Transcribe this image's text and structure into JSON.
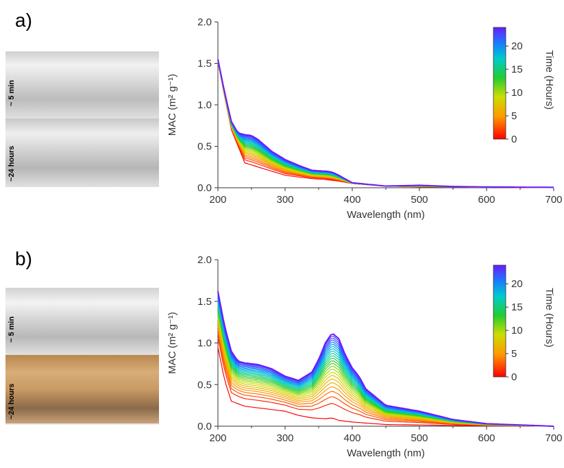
{
  "panels": [
    {
      "letter": "a)",
      "photo_labels": [
        "~ 5 min",
        "~24 hours"
      ]
    },
    {
      "letter": "b)",
      "photo_labels": [
        "~ 5 min",
        "~24 hours"
      ]
    }
  ],
  "colors": {
    "vial_clear": "#dcdcdc",
    "vial_amber": "#c79b6a",
    "series_start": "#ff0000",
    "series_end": "#6a1bff"
  },
  "chart_data": [
    {
      "type": "line",
      "xlabel": "Wavelength (nm)",
      "ylabel": "MAC (m² g⁻¹)",
      "xlim": [
        200,
        700
      ],
      "ylim": [
        0,
        2.0
      ],
      "xticks": [
        200,
        300,
        400,
        500,
        600,
        700
      ],
      "yticks": [
        0.0,
        0.5,
        1.0,
        1.5,
        2.0
      ],
      "colorbar": {
        "label": "Time (Hours)",
        "ticks": [
          0,
          5,
          10,
          15,
          20
        ],
        "range": [
          0,
          24
        ]
      },
      "series_count": 24,
      "series": [
        {
          "name": "0 h",
          "x": [
            200,
            210,
            220,
            240,
            260,
            280,
            300,
            340,
            360,
            380,
            400,
            450,
            500,
            550,
            600,
            700
          ],
          "y": [
            1.52,
            1.1,
            0.7,
            0.3,
            0.25,
            0.2,
            0.15,
            0.11,
            0.1,
            0.08,
            0.05,
            0.02,
            0.01,
            0.008,
            0.005,
            0.002
          ]
        },
        {
          "name": "24 h",
          "x": [
            200,
            210,
            220,
            230,
            240,
            250,
            260,
            280,
            300,
            320,
            340,
            360,
            370,
            380,
            400,
            450,
            500,
            550,
            600,
            700
          ],
          "y": [
            1.55,
            1.15,
            0.8,
            0.66,
            0.64,
            0.63,
            0.58,
            0.44,
            0.34,
            0.27,
            0.21,
            0.2,
            0.19,
            0.15,
            0.06,
            0.02,
            0.03,
            0.015,
            0.01,
            0.005
          ]
        }
      ]
    },
    {
      "type": "line",
      "xlabel": "Wavelength (nm)",
      "ylabel": "MAC (m² g⁻¹)",
      "xlim": [
        200,
        700
      ],
      "ylim": [
        0,
        2.0
      ],
      "xticks": [
        200,
        300,
        400,
        500,
        600,
        700
      ],
      "yticks": [
        0.0,
        0.5,
        1.0,
        1.5,
        2.0
      ],
      "colorbar": {
        "label": "Time (Hours)",
        "ticks": [
          0,
          5,
          10,
          15,
          20
        ],
        "range": [
          0,
          24
        ]
      },
      "series_count": 24,
      "series": [
        {
          "name": "0 h",
          "x": [
            200,
            210,
            220,
            240,
            260,
            280,
            300,
            320,
            340,
            360,
            370,
            380,
            400,
            450,
            500,
            550,
            600,
            700
          ],
          "y": [
            0.95,
            0.55,
            0.3,
            0.24,
            0.22,
            0.2,
            0.18,
            0.13,
            0.1,
            0.09,
            0.1,
            0.07,
            0.05,
            0.02,
            0.015,
            0.01,
            0.005,
            0.0
          ]
        },
        {
          "name": "24 h",
          "x": [
            200,
            210,
            220,
            230,
            240,
            260,
            280,
            300,
            320,
            340,
            350,
            360,
            370,
            380,
            390,
            400,
            410,
            420,
            450,
            500,
            550,
            600,
            700
          ],
          "y": [
            1.62,
            1.2,
            0.9,
            0.78,
            0.76,
            0.74,
            0.69,
            0.6,
            0.55,
            0.65,
            0.8,
            1.0,
            1.12,
            1.05,
            0.85,
            0.7,
            0.6,
            0.45,
            0.25,
            0.18,
            0.08,
            0.03,
            0.0
          ]
        }
      ]
    }
  ]
}
